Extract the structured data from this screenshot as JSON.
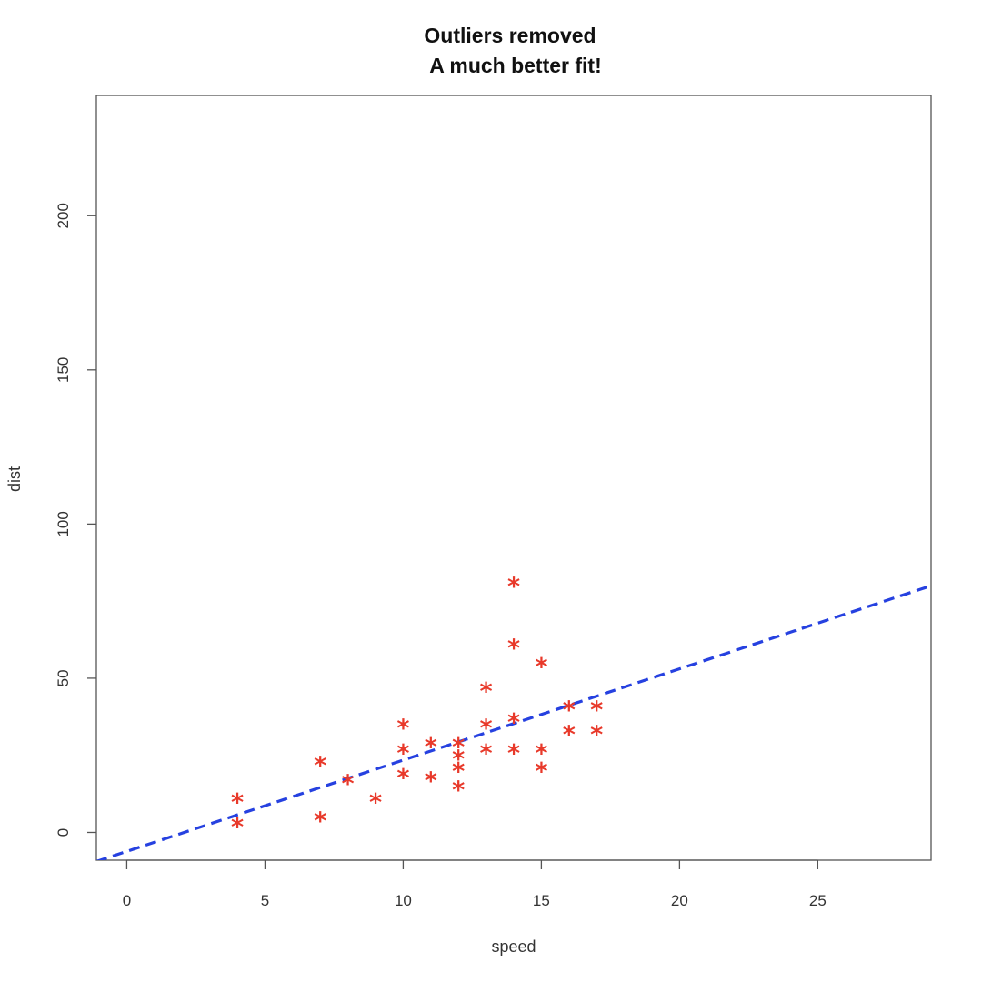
{
  "chart_data": {
    "type": "scatter",
    "title": "Outliers removed",
    "subtitle": "A much better fit!",
    "xlabel": "speed",
    "ylabel": "dist",
    "xlim": [
      -1.1,
      29.1
    ],
    "ylim": [
      -9,
      239
    ],
    "x_ticks": [
      0,
      5,
      10,
      15,
      20,
      25
    ],
    "y_ticks": [
      0,
      50,
      100,
      150,
      200
    ],
    "marker": "*",
    "grid": false,
    "points": [
      {
        "x": 4,
        "y": 2
      },
      {
        "x": 4,
        "y": 10
      },
      {
        "x": 7,
        "y": 4
      },
      {
        "x": 7,
        "y": 22
      },
      {
        "x": 8,
        "y": 16
      },
      {
        "x": 9,
        "y": 10
      },
      {
        "x": 10,
        "y": 18
      },
      {
        "x": 10,
        "y": 26
      },
      {
        "x": 10,
        "y": 34
      },
      {
        "x": 11,
        "y": 17
      },
      {
        "x": 11,
        "y": 28
      },
      {
        "x": 12,
        "y": 14
      },
      {
        "x": 12,
        "y": 20
      },
      {
        "x": 12,
        "y": 24
      },
      {
        "x": 12,
        "y": 28
      },
      {
        "x": 13,
        "y": 26
      },
      {
        "x": 13,
        "y": 34
      },
      {
        "x": 13,
        "y": 46
      },
      {
        "x": 14,
        "y": 26
      },
      {
        "x": 14,
        "y": 36
      },
      {
        "x": 14,
        "y": 60
      },
      {
        "x": 14,
        "y": 80
      },
      {
        "x": 15,
        "y": 20
      },
      {
        "x": 15,
        "y": 26
      },
      {
        "x": 15,
        "y": 54
      },
      {
        "x": 16,
        "y": 32
      },
      {
        "x": 16,
        "y": 40
      },
      {
        "x": 17,
        "y": 32
      },
      {
        "x": 17,
        "y": 40
      }
    ],
    "fit_line": {
      "intercept": -6.15,
      "slope": 2.96,
      "style": "dashed"
    },
    "colors": {
      "points": "#e8392a",
      "fit_line": "#2641e0",
      "frame": "#555555",
      "text": "#333333"
    }
  }
}
